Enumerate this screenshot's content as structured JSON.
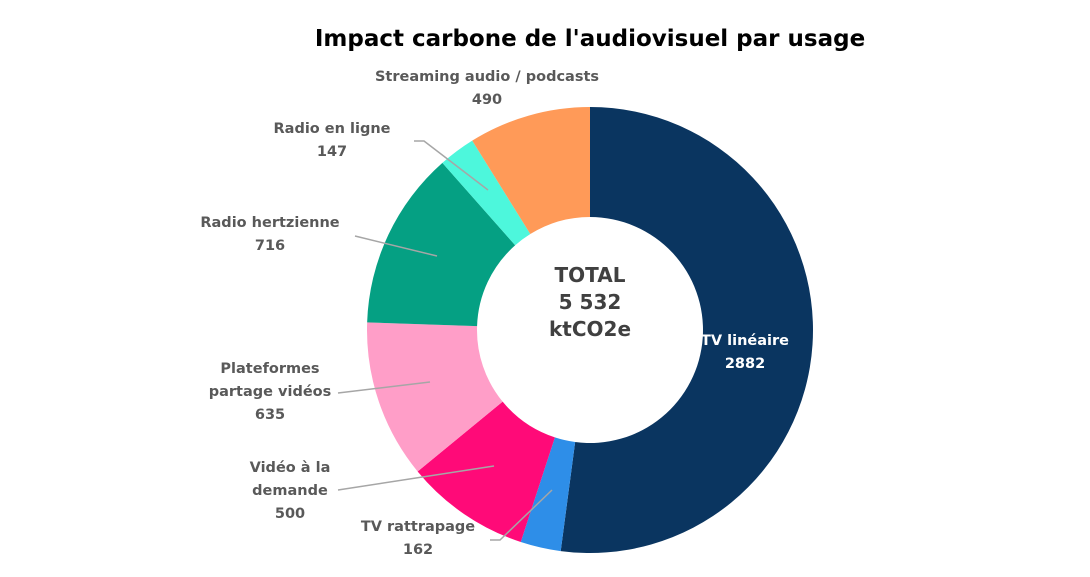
{
  "chart_data": {
    "type": "pie",
    "donut": true,
    "title": "Impact carbone de l'audiovisuel par usage",
    "center_label": [
      "TOTAL",
      "5 532",
      "ktCO2e"
    ],
    "categories": [
      "TV linéaire",
      "TV rattrapage",
      "Vidéo à la demande",
      "Plateformes partage vidéos",
      "Radio hertzienne",
      "Radio en ligne",
      "Streaming audio / podcasts"
    ],
    "values": [
      2882,
      162,
      500,
      635,
      716,
      147,
      490
    ],
    "colors": [
      "#0a3560",
      "#2e8ee8",
      "#ff0a78",
      "#ff9ec8",
      "#05a083",
      "#4df7dc",
      "#ff9a58"
    ],
    "labels": [
      {
        "lines": [
          "TV linéaire",
          "2882"
        ]
      },
      {
        "lines": [
          "TV rattrapage",
          "162"
        ]
      },
      {
        "lines": [
          "Vidéo à la",
          "demande",
          "500"
        ]
      },
      {
        "lines": [
          "Plateformes",
          "partage vidéos",
          "635"
        ]
      },
      {
        "lines": [
          "Radio hertzienne",
          "716"
        ]
      },
      {
        "lines": [
          "Radio en ligne",
          "147"
        ]
      },
      {
        "lines": [
          "Streaming audio / podcasts",
          "490"
        ]
      }
    ]
  }
}
